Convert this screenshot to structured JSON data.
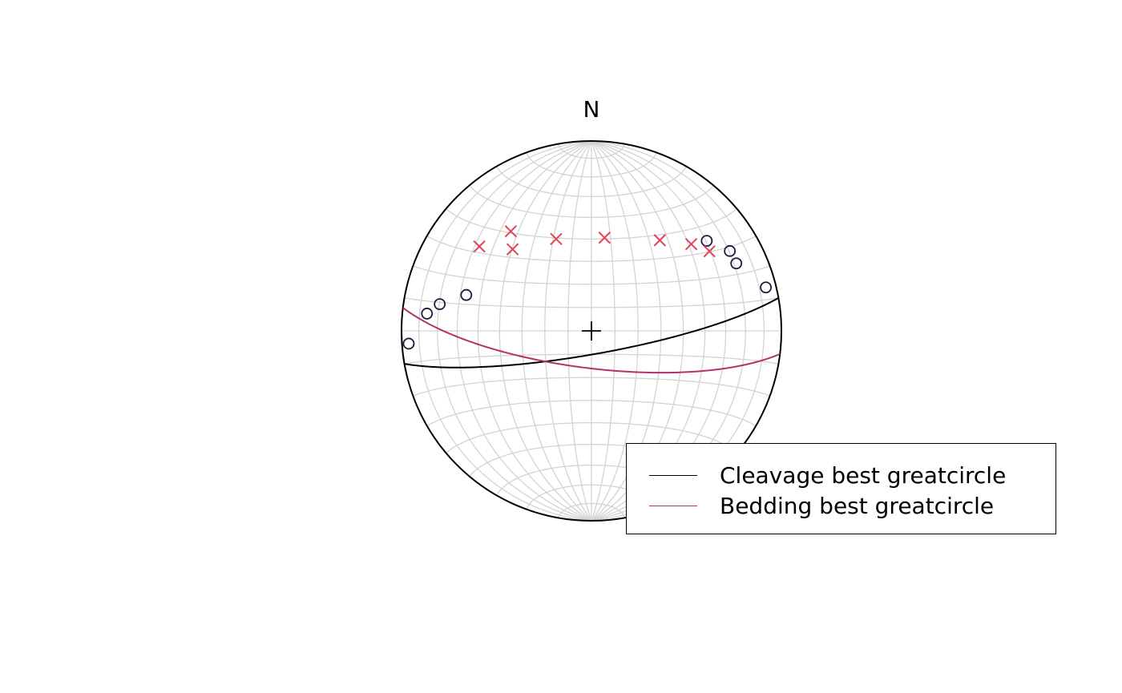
{
  "north_label": "N",
  "colors": {
    "grid": "#d3d3d3",
    "cleavage": "#000000",
    "bedding": "#b5306e",
    "cleavage_poles": "#1b1a3d",
    "bedding_poles": "#e0455a"
  },
  "legend": {
    "items": [
      {
        "label": "Cleavage best greatcircle",
        "color": "#000000"
      },
      {
        "label": "Bedding best greatcircle",
        "color": "#b5306e"
      }
    ]
  },
  "chart_data": {
    "type": "scatter",
    "projection": "equal-area stereonet (lower hemisphere)",
    "grid": true,
    "legend_position": "bottom-right",
    "center_marker": "+",
    "great_circles": [
      {
        "name": "Cleavage best greatcircle",
        "dip_direction": 170,
        "dip": 80,
        "color": "#000000"
      },
      {
        "name": "Bedding best greatcircle",
        "dip_direction": 187,
        "dip": 74,
        "color": "#b5306e"
      }
    ],
    "series": [
      {
        "symbol": "circle",
        "color": "#1b1a3d",
        "points": [
          {
            "trend": 266,
            "plunge": 4
          },
          {
            "trend": 276,
            "plunge": 14
          },
          {
            "trend": 280,
            "plunge": 20
          },
          {
            "trend": 286,
            "plunge": 32
          },
          {
            "trend": 52,
            "plunge": 24
          },
          {
            "trend": 60,
            "plunge": 17
          },
          {
            "trend": 65,
            "plunge": 17
          },
          {
            "trend": 76,
            "plunge": 6
          }
        ]
      },
      {
        "symbol": "cross",
        "color": "#e0455a",
        "points": [
          {
            "trend": 307,
            "plunge": 27
          },
          {
            "trend": 321,
            "plunge": 33
          },
          {
            "trend": 316,
            "plunge": 40
          },
          {
            "trend": 339,
            "plunge": 47
          },
          {
            "trend": 8,
            "plunge": 49
          },
          {
            "trend": 37,
            "plunge": 40
          },
          {
            "trend": 49,
            "plunge": 31
          },
          {
            "trend": 56,
            "plunge": 26
          }
        ]
      }
    ]
  }
}
